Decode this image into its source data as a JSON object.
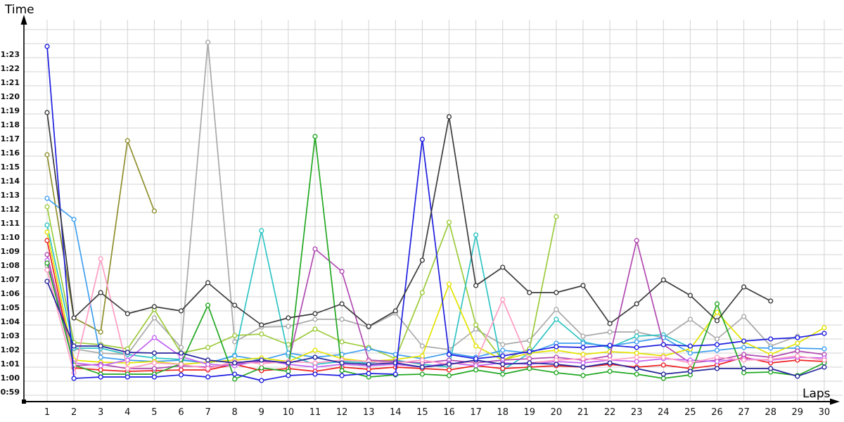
{
  "titles": {
    "y_axis": "Time",
    "x_axis": "Laps"
  },
  "chart_data": {
    "type": "line",
    "title": "",
    "xlabel": "Laps",
    "ylabel": "Time",
    "x": [
      1,
      2,
      3,
      4,
      5,
      6,
      7,
      8,
      9,
      10,
      11,
      12,
      13,
      14,
      15,
      16,
      17,
      18,
      19,
      20,
      21,
      22,
      23,
      24,
      25,
      26,
      27,
      28,
      29,
      30
    ],
    "x_ticks": [
      "1",
      "2",
      "3",
      "4",
      "5",
      "6",
      "7",
      "8",
      "9",
      "10",
      "11",
      "12",
      "13",
      "14",
      "15",
      "16",
      "17",
      "18",
      "19",
      "20",
      "21",
      "22",
      "23",
      "24",
      "25",
      "26",
      "27",
      "28",
      "29",
      "30"
    ],
    "y_tick_labels": [
      "1:23",
      "1:22",
      "1:21",
      "1:20",
      "1:19",
      "1:18",
      "1:17",
      "1:16",
      "1:15",
      "1:14",
      "1:13",
      "1:12",
      "1:11",
      "1:10",
      "1:09",
      "1:08",
      "1:07",
      "1:06",
      "1:05",
      "1:04",
      "1:03",
      "1:02",
      "1:01",
      "1:00",
      "0:59"
    ],
    "y_tick_seconds": [
      83,
      82,
      81,
      80,
      79,
      78,
      77,
      76,
      75,
      74,
      73,
      72,
      71,
      70,
      69,
      68,
      67,
      66,
      65,
      64,
      63,
      62,
      61,
      60,
      59
    ],
    "extra_unlabeled_gridline_seconds": [
      84,
      85
    ],
    "y_range_seconds": [
      59,
      85.5
    ],
    "unit": "lap time, m:ss",
    "grid": true,
    "legend": "none",
    "style": {
      "grid_color": "#d3d3d3",
      "axis_color": "#000000",
      "marker_fill": "#ffffff",
      "background": "#ffffff"
    },
    "series": [
      {
        "name": "gray",
        "color": "#a9a9a9",
        "values": [
          68.2,
          62.3,
          62.0,
          61.9,
          64.5,
          62.4,
          84.1,
          62.8,
          63.85,
          63.9,
          64.4,
          64.4,
          63.85,
          64.85,
          62.5,
          62.25,
          63.7,
          62.6,
          62.9,
          65.1,
          63.2,
          63.5,
          63.5,
          63.1,
          64.4,
          63.0,
          64.6,
          62.5,
          63.2,
          null
        ]
      },
      {
        "name": "olive",
        "color": "#8e8e2e",
        "values": [
          76.1,
          64.5,
          63.5,
          77.1,
          72.1,
          null,
          null,
          null,
          null,
          null,
          null,
          null,
          null,
          null,
          null,
          null,
          null,
          null,
          null,
          null,
          null,
          null,
          null,
          null,
          null,
          null,
          null,
          null,
          null,
          null
        ]
      },
      {
        "name": "yellow-green",
        "color": "#9ccb3b",
        "values": [
          72.4,
          62.75,
          62.6,
          62.3,
          65.1,
          62.0,
          62.4,
          63.25,
          63.35,
          62.6,
          63.7,
          62.8,
          62.4,
          61.6,
          66.3,
          71.3,
          64.0,
          61.5,
          62.3,
          71.7,
          null,
          null,
          null,
          null,
          null,
          null,
          null,
          null,
          null,
          null
        ]
      },
      {
        "name": "cyan",
        "color": "#2fc4c4",
        "values": [
          71.1,
          62.35,
          62.35,
          61.9,
          61.65,
          61.55,
          61.25,
          61.85,
          70.7,
          61.85,
          61.2,
          61.4,
          61.3,
          61.5,
          61.2,
          61.0,
          70.4,
          60.8,
          62.0,
          64.4,
          62.8,
          62.4,
          63.2,
          63.3,
          62.4,
          null,
          null,
          null,
          null,
          null
        ]
      },
      {
        "name": "light-blue",
        "color": "#3f9fef",
        "values": [
          73.0,
          71.5,
          61.7,
          61.5,
          61.4,
          61.5,
          61.3,
          61.8,
          61.5,
          62.0,
          61.7,
          61.9,
          62.3,
          61.9,
          61.6,
          62.0,
          61.7,
          62.2,
          62.0,
          62.7,
          62.7,
          62.5,
          62.8,
          63.1,
          62.0,
          62.2,
          62.4,
          62.35,
          62.35,
          62.3
        ]
      },
      {
        "name": "yellow",
        "color": "#e3e300",
        "values": [
          70.6,
          61.5,
          61.35,
          61.3,
          61.4,
          61.2,
          61.35,
          61.5,
          61.65,
          61.4,
          62.2,
          61.6,
          61.4,
          61.55,
          61.8,
          66.9,
          62.5,
          61.5,
          62.0,
          62.2,
          61.9,
          62.1,
          62.0,
          61.8,
          62.3,
          64.9,
          62.8,
          61.9,
          62.7,
          63.8
        ]
      },
      {
        "name": "red",
        "color": "#ee2222",
        "values": [
          70.0,
          60.95,
          60.8,
          60.7,
          60.75,
          60.8,
          60.8,
          61.2,
          60.75,
          60.9,
          60.7,
          61.0,
          60.85,
          61.0,
          60.9,
          60.8,
          61.1,
          60.9,
          61.0,
          61.1,
          61.0,
          61.2,
          61.0,
          61.15,
          60.9,
          61.15,
          61.7,
          61.3,
          61.5,
          61.4
        ]
      },
      {
        "name": "purple",
        "color": "#b14ab1",
        "values": [
          69.0,
          61.1,
          61.2,
          60.9,
          60.9,
          61.1,
          61.0,
          61.2,
          61.4,
          61.3,
          69.4,
          67.8,
          61.5,
          61.4,
          61.3,
          61.5,
          61.3,
          61.5,
          61.6,
          61.7,
          61.5,
          61.8,
          70.0,
          62.6,
          61.3,
          61.5,
          61.9,
          61.7,
          62.15,
          61.9
        ]
      },
      {
        "name": "violet",
        "color": "#c465f2",
        "values": [
          68.6,
          61.3,
          61.1,
          61.5,
          63.1,
          61.75,
          61.2,
          61.1,
          61.5,
          61.2,
          61.0,
          61.2,
          61.1,
          61.2,
          61.0,
          61.3,
          61.1,
          61.3,
          61.2,
          61.4,
          61.3,
          61.5,
          61.4,
          61.6,
          61.5,
          61.4,
          61.6,
          61.5,
          61.7,
          61.65
        ]
      },
      {
        "name": "green",
        "color": "#22a822",
        "values": [
          68.4,
          61.15,
          60.5,
          60.5,
          60.5,
          61.25,
          65.4,
          60.15,
          60.95,
          60.7,
          77.4,
          60.75,
          60.3,
          60.45,
          60.5,
          60.4,
          60.8,
          60.5,
          60.9,
          60.6,
          60.4,
          60.7,
          60.5,
          60.2,
          60.45,
          65.5,
          60.6,
          60.65,
          60.4,
          61.3
        ]
      },
      {
        "name": "pink",
        "color": "#ff9dc4",
        "values": [
          67.9,
          60.6,
          68.7,
          60.9,
          61.3,
          61.2,
          60.9,
          61.4,
          61.25,
          61.4,
          61.3,
          61.5,
          61.4,
          61.3,
          61.5,
          61.2,
          61.4,
          65.8,
          61.3,
          61.5,
          61.6,
          61.5,
          61.7,
          61.7,
          61.3,
          61.7,
          61.5,
          61.55,
          61.8,
          61.5
        ]
      },
      {
        "name": "navy",
        "color": "#26269b",
        "values": [
          67.1,
          62.5,
          62.5,
          62.05,
          62.0,
          62.0,
          61.5,
          61.3,
          61.5,
          61.3,
          61.7,
          61.3,
          61.2,
          61.3,
          61.0,
          61.2,
          61.5,
          61.2,
          61.3,
          61.2,
          61.0,
          61.3,
          60.9,
          60.5,
          60.7,
          60.9,
          60.9,
          60.9,
          60.35,
          61.0
        ]
      },
      {
        "name": "blue",
        "color": "#1e1ee0",
        "values": [
          83.8,
          60.2,
          60.3,
          60.3,
          60.3,
          60.45,
          60.3,
          60.5,
          60.05,
          60.4,
          60.5,
          60.4,
          60.55,
          60.5,
          77.2,
          61.9,
          61.6,
          61.8,
          62.1,
          62.45,
          62.4,
          62.55,
          62.4,
          62.6,
          62.5,
          62.6,
          62.85,
          63.0,
          63.1,
          63.4
        ]
      },
      {
        "name": "black",
        "color": "#3c3c3c",
        "values": [
          79.1,
          64.5,
          66.3,
          64.8,
          65.3,
          65.0,
          67.0,
          65.4,
          64.0,
          64.5,
          64.8,
          65.5,
          63.9,
          65.0,
          68.6,
          78.8,
          66.8,
          68.1,
          66.3,
          66.3,
          66.8,
          64.1,
          65.5,
          67.2,
          66.1,
          64.3,
          66.7,
          65.7,
          null,
          null
        ]
      }
    ]
  }
}
